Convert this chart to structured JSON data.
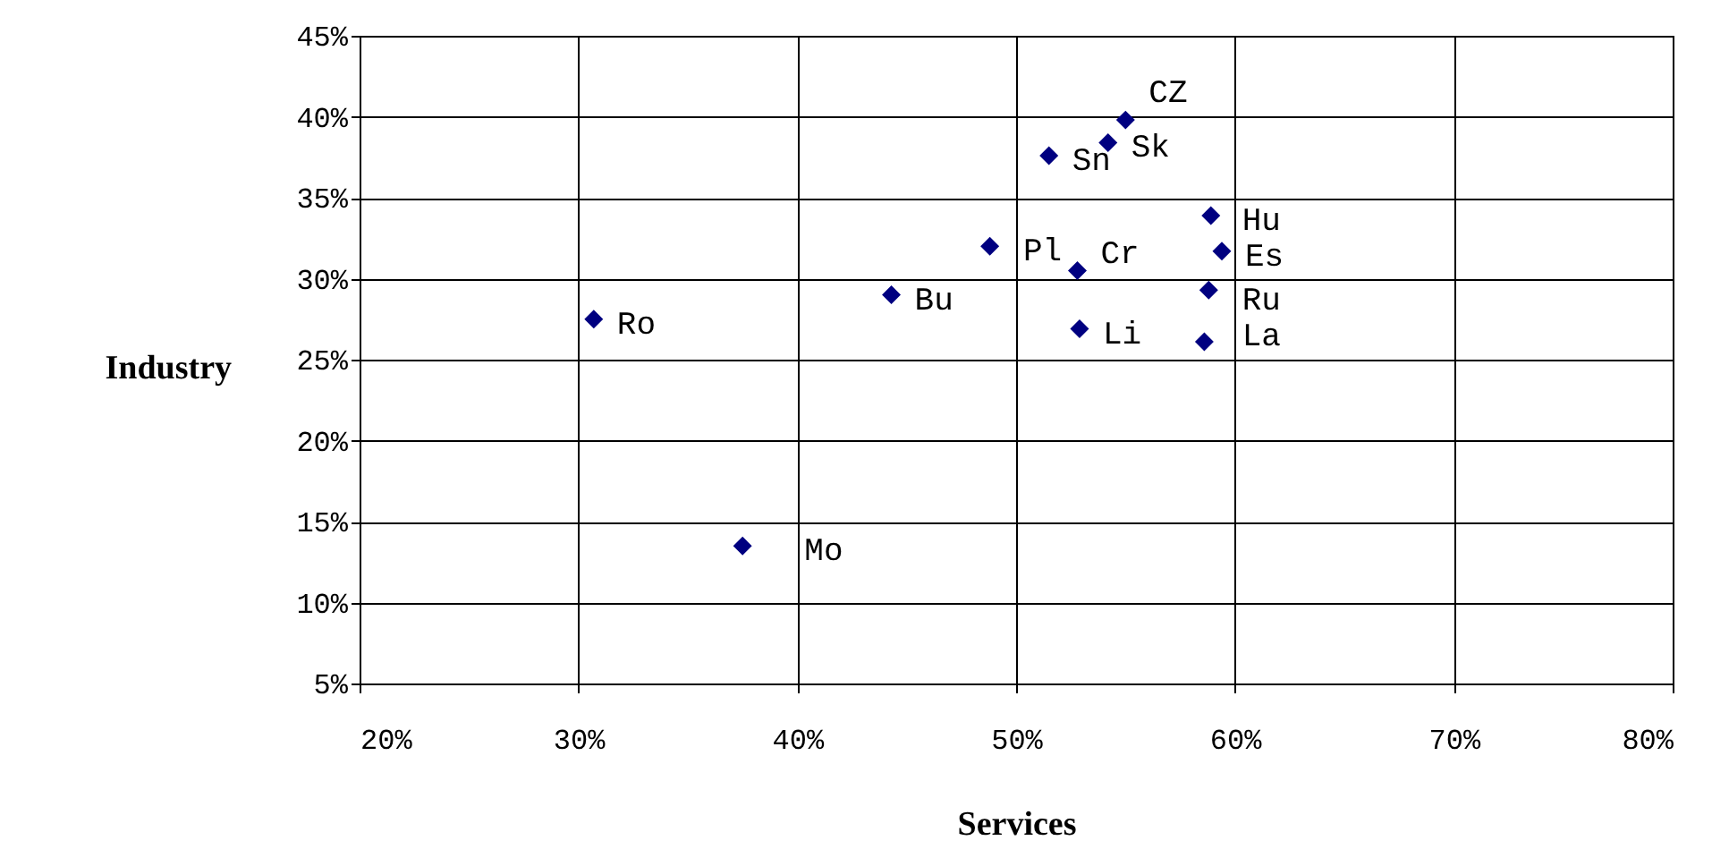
{
  "chart_data": {
    "type": "scatter",
    "xlabel": "Services",
    "ylabel": "Industry",
    "x": [
      55.0,
      54.2,
      51.5,
      58.9,
      59.4,
      48.8,
      52.8,
      58.8,
      44.3,
      52.9,
      58.6,
      30.7,
      37.5
    ],
    "series": [
      {
        "color": "#000080",
        "values": [
          39.8,
          38.4,
          37.6,
          33.9,
          31.7,
          32.0,
          30.5,
          29.3,
          29.0,
          26.9,
          26.1,
          27.5,
          13.5
        ]
      }
    ],
    "annotations": [
      {
        "text": "CZ",
        "x": 55.0,
        "y": 39.8
      },
      {
        "text": "Sk",
        "x": 54.2,
        "y": 38.4
      },
      {
        "text": "Sn",
        "x": 51.5,
        "y": 37.6
      },
      {
        "text": "Hu",
        "x": 58.9,
        "y": 33.9
      },
      {
        "text": "Es",
        "x": 59.4,
        "y": 31.7
      },
      {
        "text": "Pl",
        "x": 48.8,
        "y": 32.0
      },
      {
        "text": "Cr",
        "x": 52.8,
        "y": 30.5
      },
      {
        "text": "Ru",
        "x": 58.8,
        "y": 29.3
      },
      {
        "text": "Bu",
        "x": 44.3,
        "y": 29.0
      },
      {
        "text": "Li",
        "x": 52.9,
        "y": 26.9
      },
      {
        "text": "La",
        "x": 58.6,
        "y": 26.1
      },
      {
        "text": "Ro",
        "x": 30.7,
        "y": 27.5
      },
      {
        "text": "Mo",
        "x": 37.5,
        "y": 13.5
      }
    ],
    "xlim": [
      20,
      80
    ],
    "xticks": [
      {
        "value": 20,
        "label": "20%"
      },
      {
        "value": 30,
        "label": "30%"
      },
      {
        "value": 40,
        "label": "40%"
      },
      {
        "value": 50,
        "label": "50%"
      },
      {
        "value": 60,
        "label": "60%"
      },
      {
        "value": 70,
        "label": "70%"
      },
      {
        "value": 80,
        "label": "80%"
      }
    ],
    "ylim": [
      5,
      45
    ],
    "yticks": [
      {
        "value": 5,
        "label": "5%"
      },
      {
        "value": 10,
        "label": "10%"
      },
      {
        "value": 15,
        "label": "15%"
      },
      {
        "value": 20,
        "label": "20%"
      },
      {
        "value": 25,
        "label": "25%"
      },
      {
        "value": 30,
        "label": "30%"
      },
      {
        "value": 35,
        "label": "35%"
      },
      {
        "value": 40,
        "label": "40%"
      },
      {
        "value": 45,
        "label": "45%"
      }
    ],
    "grid": true,
    "legend": false,
    "marker": "diamond"
  }
}
